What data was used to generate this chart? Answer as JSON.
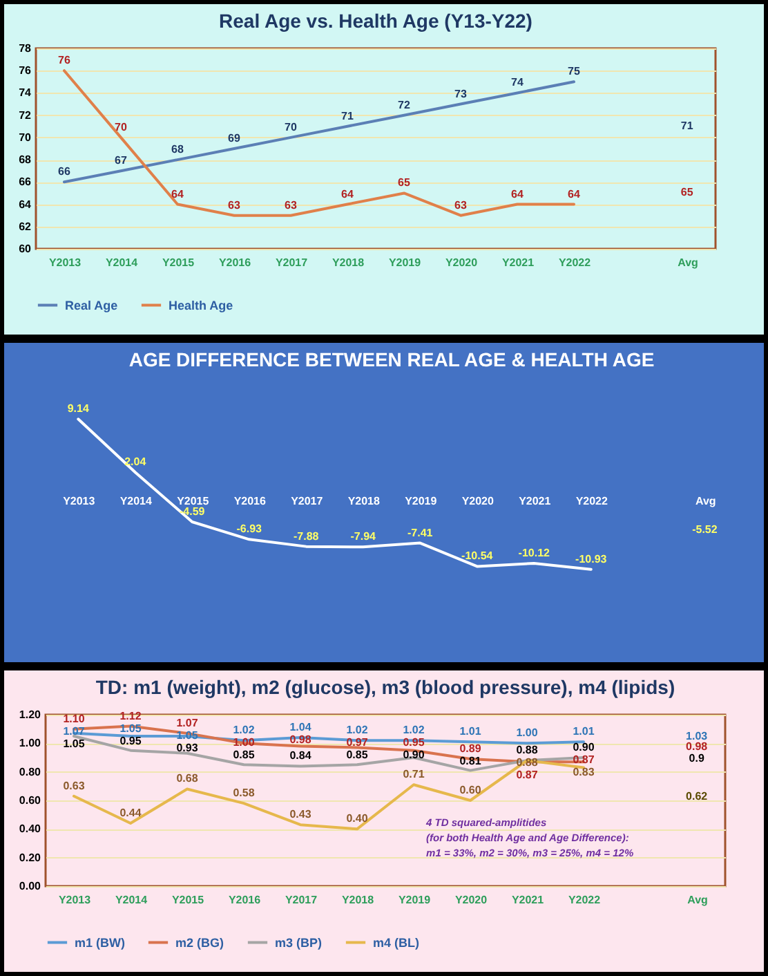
{
  "chart_data": [
    {
      "type": "line",
      "title": "Real Age vs. Health Age  (Y13-Y22)",
      "categories": [
        "Y2013",
        "Y2014",
        "Y2015",
        "Y2016",
        "Y2017",
        "Y2018",
        "Y2019",
        "Y2020",
        "Y2021",
        "Y2022",
        null,
        "Avg"
      ],
      "series": [
        {
          "name": "Real Age",
          "color": "#5b7fb5",
          "values": [
            66,
            67,
            68,
            69,
            70,
            71,
            72,
            73,
            74,
            75,
            null,
            null
          ]
        },
        {
          "name": "Health Age",
          "color": "#e0804a",
          "values": [
            76,
            70,
            64,
            63,
            63,
            64,
            65,
            63,
            64,
            64,
            null,
            null
          ]
        }
      ],
      "ylim": [
        60,
        78
      ],
      "yticks": [
        60,
        62,
        64,
        66,
        68,
        70,
        72,
        74,
        76,
        78
      ],
      "grid": "y",
      "legend": "bottom",
      "data_labels": true,
      "annotations": [
        "71",
        "65"
      ]
    },
    {
      "type": "line",
      "title": "AGE DIFFERENCE BETWEEN REAL AGE & HEALTH AGE",
      "categories": [
        "Y2013",
        "Y2014",
        "Y2015",
        "Y2016",
        "Y2017",
        "Y2018",
        "Y2019",
        "Y2020",
        "Y2021",
        "Y2022",
        null,
        "Avg"
      ],
      "series": [
        {
          "color": "#ffffff",
          "values": [
            9.14,
            2.04,
            -4.59,
            -6.93,
            -7.88,
            -7.94,
            -7.41,
            -10.54,
            -10.12,
            -10.93,
            null,
            null
          ]
        }
      ],
      "tick_labels": "x",
      "data_labels": true,
      "annotations": [
        "-5.52"
      ]
    },
    {
      "type": "line",
      "title": "TD:  m1 (weight), m2 (glucose), m3 (blood pressure), m4 (lipids)",
      "categories": [
        "Y2013",
        "Y2014",
        "Y2015",
        "Y2016",
        "Y2017",
        "Y2018",
        "Y2019",
        "Y2020",
        "Y2021",
        "Y2022",
        null,
        "Avg"
      ],
      "series": [
        {
          "name": "m1 (BW)",
          "color": "#5b9bd5",
          "values": [
            1.07,
            1.05,
            1.05,
            1.02,
            1.04,
            1.02,
            1.02,
            1.01,
            1.0,
            1.01,
            null,
            null
          ],
          "value_labels": [
            "1.07",
            "1.05",
            "1.05",
            "1.02",
            "1.04",
            "1.02",
            "1.02",
            "1.01",
            "1.00",
            "1.01",
            null,
            null
          ]
        },
        {
          "name": "m2 (BG)",
          "color": "#d9734e",
          "values": [
            1.1,
            1.12,
            1.07,
            1.0,
            0.98,
            0.97,
            0.95,
            0.89,
            0.87,
            0.87,
            null,
            null
          ],
          "value_labels": [
            "1.10",
            "1.12",
            "1.07",
            "1.00",
            "0.98",
            "0.97",
            "0.95",
            "0.89",
            "0.87",
            "0.87",
            null,
            null
          ]
        },
        {
          "name": "m3 (BP)",
          "color": "#a5a5a5",
          "values": [
            1.05,
            0.95,
            0.93,
            0.85,
            0.84,
            0.85,
            0.9,
            0.81,
            0.88,
            0.9,
            null,
            null
          ],
          "value_labels": [
            "1.05",
            "0.95",
            "0.93",
            "0.85",
            "0.84",
            "0.85",
            "0.90",
            "0.81",
            "0.88",
            "0.90",
            null,
            null
          ]
        },
        {
          "name": "m4 (BL)",
          "color": "#e6b84c",
          "values": [
            0.63,
            0.44,
            0.68,
            0.58,
            0.43,
            0.4,
            0.71,
            0.6,
            0.88,
            0.83,
            null,
            null
          ],
          "value_labels": [
            "0.63",
            "0.44",
            "0.68",
            "0.58",
            "0.43",
            "0.40",
            "0.71",
            "0.60",
            "0.88",
            "0.83",
            null,
            null
          ]
        }
      ],
      "ylim": [
        0,
        1.2
      ],
      "yticks": [
        {
          "value": 0,
          "label": "0.00"
        },
        {
          "value": 0.2,
          "label": "0.20"
        },
        {
          "value": 0.4,
          "label": "0.40"
        },
        {
          "value": 0.6,
          "label": "0.60"
        },
        {
          "value": 0.8,
          "label": "0.80"
        },
        {
          "value": 1.0,
          "label": "1.00"
        },
        {
          "value": 1.2,
          "label": "1.20"
        }
      ],
      "grid": "y",
      "legend": "bottom",
      "annotations": [
        "1.03",
        "0.98",
        "0.9",
        "0.62",
        "4 TD squared-amplitides\n(for both Health Age and Age Difference):\nm1 = 33%, m2 = 30%, m3 = 25%, m4 = 12%"
      ]
    }
  ]
}
